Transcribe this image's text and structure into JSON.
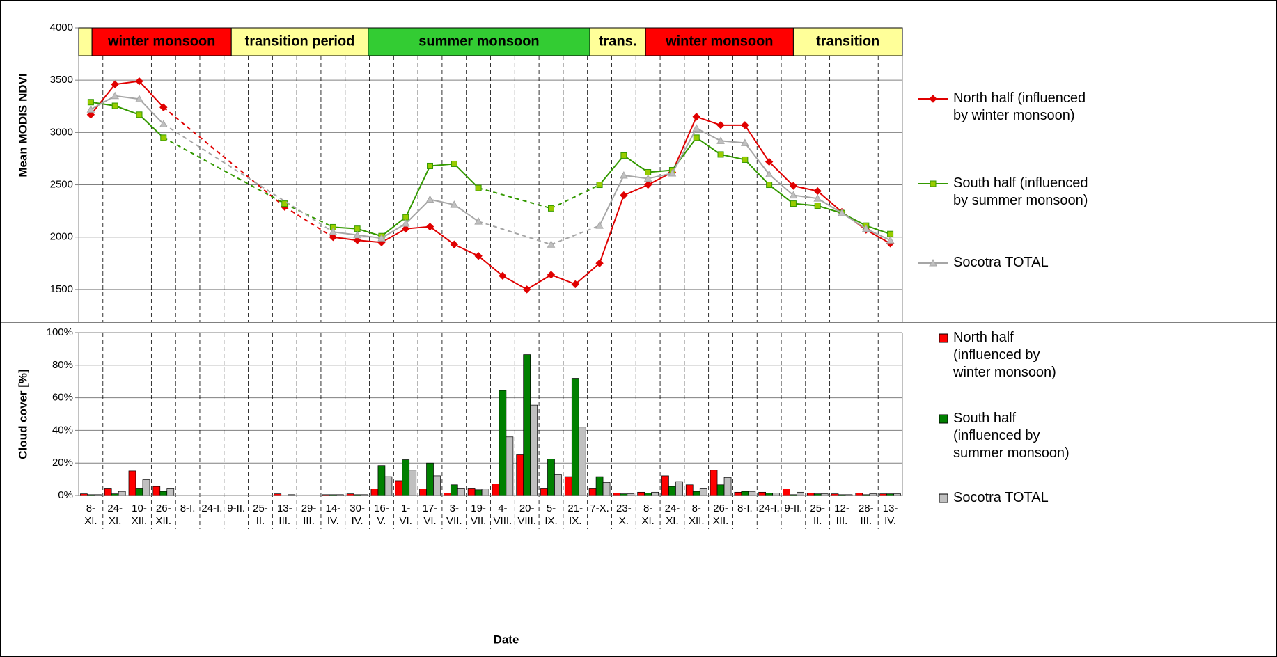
{
  "chart_data": [
    {
      "type": "line",
      "ylabel": "Mean MODIS NDVI",
      "ylim": [
        1200,
        4000
      ],
      "yticks": [
        1500,
        2000,
        2500,
        3000,
        3500,
        4000
      ],
      "grid": true,
      "connect_gaps": true,
      "seasons": [
        {
          "label": null,
          "start": 0,
          "end": 0.55,
          "color": "#ffff99"
        },
        {
          "label": "winter monsoon",
          "start": 0.55,
          "end": 6.3,
          "color": "#ff0000"
        },
        {
          "label": "transition period",
          "start": 6.3,
          "end": 11.95,
          "color": "#ffff99"
        },
        {
          "label": "summer monsoon",
          "start": 11.95,
          "end": 21.1,
          "color": "#33cc33"
        },
        {
          "label": "trans.",
          "start": 21.1,
          "end": 23.4,
          "color": "#ffff99"
        },
        {
          "label": "winter monsoon",
          "start": 23.4,
          "end": 29.5,
          "color": "#ff0000"
        },
        {
          "label": "transition",
          "start": 29.5,
          "end": 34,
          "color": "#ffff99"
        }
      ],
      "series": [
        {
          "name": "North half (influenced by winter monsoon)",
          "color": "#e00000",
          "marker": "diamond",
          "values": [
            3170,
            3460,
            3490,
            3240,
            null,
            null,
            null,
            null,
            2290,
            null,
            2000,
            1970,
            1950,
            2080,
            2100,
            1930,
            1820,
            1630,
            1500,
            1640,
            1550,
            1750,
            2400,
            2500,
            2620,
            3150,
            3070,
            3070,
            2720,
            2490,
            2440,
            2240,
            2070,
            1940
          ]
        },
        {
          "name": "South half (influenced by summer monsoon)",
          "color": "#339900",
          "marker": "square",
          "values": [
            3290,
            3255,
            3170,
            2950,
            null,
            null,
            null,
            null,
            2320,
            null,
            2095,
            2080,
            2010,
            2190,
            2680,
            2700,
            2470,
            null,
            null,
            2275,
            null,
            2500,
            2780,
            2620,
            2640,
            2950,
            2790,
            2740,
            2500,
            2320,
            2300,
            2230,
            2110,
            2030
          ]
        },
        {
          "name": "Socotra TOTAL",
          "color": "#a6a6a6",
          "marker": "triangle",
          "values": [
            3220,
            3350,
            3320,
            3080,
            null,
            null,
            null,
            null,
            null,
            null,
            2050,
            2020,
            1990,
            2130,
            2360,
            2310,
            2150,
            null,
            null,
            1930,
            null,
            2110,
            2590,
            2560,
            2610,
            3040,
            2920,
            2900,
            2600,
            2400,
            2370,
            2230,
            2080,
            1970
          ]
        }
      ]
    },
    {
      "type": "bar",
      "ylabel": "Cloud cover [%]",
      "xlabel": "Date",
      "ylim": [
        0,
        100
      ],
      "yticks": [
        {
          "value": 0,
          "label": "0%"
        },
        {
          "value": 20,
          "label": "20%"
        },
        {
          "value": 40,
          "label": "40%"
        },
        {
          "value": 60,
          "label": "60%"
        },
        {
          "value": 80,
          "label": "80%"
        },
        {
          "value": 100,
          "label": "100%"
        }
      ],
      "grid": true,
      "categories": [
        "8-XI.",
        "24-XI.",
        "10-XII.",
        "26-XII.",
        "8-I.",
        "24-I.",
        "9-II.",
        "25-II.",
        "13-III.",
        "29-III.",
        "14-IV.",
        "30-IV.",
        "16-V.",
        "1-VI.",
        "17-VI.",
        "3-VII.",
        "19-VII.",
        "4-VIII.",
        "20-VIII.",
        "5-IX.",
        "21-IX.",
        "7-X.",
        "23-X.",
        "8-XI.",
        "24-XI.",
        "8-XII.",
        "26-XII.",
        "8-I.",
        "24-I.",
        "9-II.",
        "25-II.",
        "12-III.",
        "28-III.",
        "13-IV."
      ],
      "series": [
        {
          "name": "North half (influenced by winter monsoon)",
          "color": "#ff0000",
          "values": [
            1,
            4.5,
            15,
            5.5,
            0,
            0,
            0,
            0,
            1,
            0,
            0.5,
            1,
            4,
            9,
            4,
            1.5,
            4.5,
            7,
            25,
            4.5,
            11.5,
            4.5,
            1.5,
            2,
            12,
            6.5,
            15.5,
            2,
            2,
            4,
            1.5,
            1,
            1.5,
            1
          ]
        },
        {
          "name": "South half (influenced by summer monsoon)",
          "color": "#008000",
          "values": [
            0.5,
            1,
            4.5,
            2.5,
            0,
            0,
            0,
            0,
            0,
            0,
            0.5,
            0.5,
            18.5,
            22,
            20,
            6.5,
            3.5,
            64.5,
            86.5,
            22.5,
            72,
            11.5,
            1,
            1.5,
            5.5,
            2.5,
            6.5,
            2.5,
            1.5,
            0.5,
            1,
            0.5,
            0.5,
            1
          ]
        },
        {
          "name": "Socotra TOTAL",
          "color": "#c0c0c0",
          "values": [
            0.5,
            2.5,
            10,
            4.5,
            0,
            0,
            0,
            0,
            0.5,
            0,
            0.5,
            0.5,
            11.5,
            15.5,
            12,
            4.5,
            4,
            36,
            55.5,
            13,
            42,
            8,
            1,
            2,
            8.5,
            4.5,
            11,
            2.5,
            1.5,
            2,
            1,
            0.5,
            1,
            1
          ]
        }
      ]
    }
  ]
}
